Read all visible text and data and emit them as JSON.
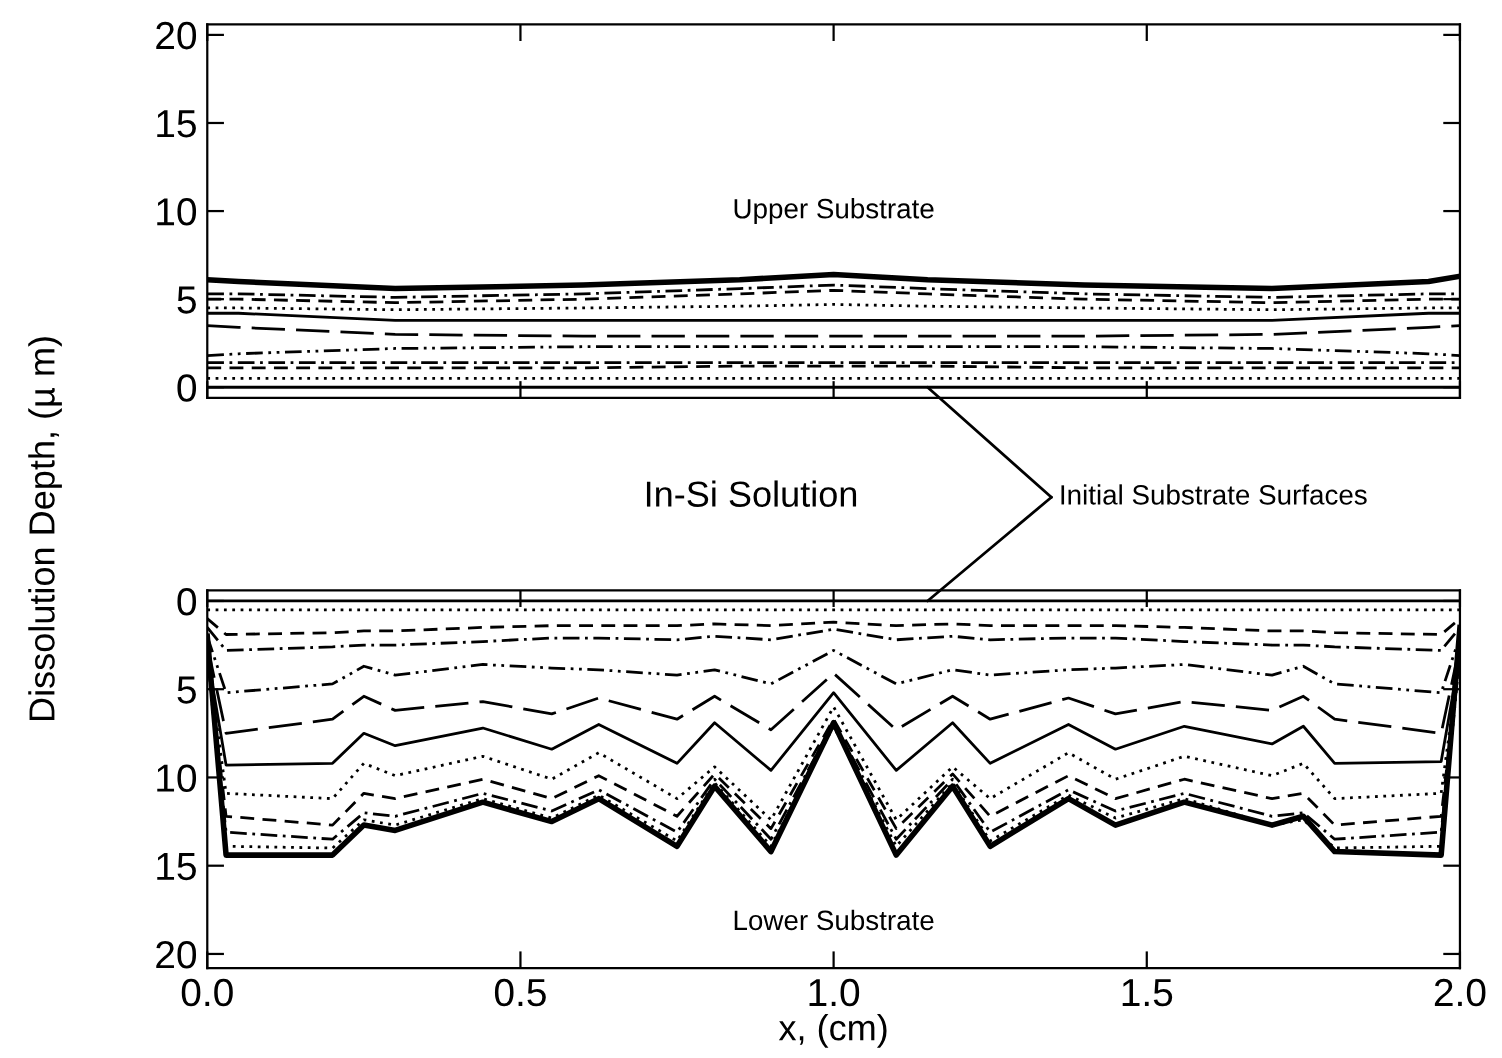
{
  "chart_data": [
    {
      "type": "line",
      "ylabel": "Dissolution Depth, (µ m)",
      "xlim": [
        0,
        2
      ],
      "ylim": [
        -0.6,
        20.6
      ],
      "xticks": [
        {
          "value": 0,
          "label": null
        },
        {
          "value": 0.5,
          "label": null
        },
        {
          "value": 1,
          "label": null
        },
        {
          "value": 1.5,
          "label": null
        },
        {
          "value": 2,
          "label": null
        }
      ],
      "yticks": [
        0,
        5,
        10,
        15,
        20
      ],
      "tick_labels": "y",
      "grid": false,
      "legend": false,
      "annotations": [
        "Upper Substrate",
        "In-Si Solution",
        {
          "text": "Initial Substrate Surfaces",
          "x": 1.15,
          "y": 0
        }
      ],
      "x": [
        0,
        0.05,
        0.3,
        0.6,
        0.85,
        1.0,
        1.15,
        1.4,
        1.7,
        1.95,
        2.0
      ],
      "series": [
        {
          "color": "#000000",
          "line_style": "solid",
          "values": [
            0,
            0,
            0,
            0,
            0,
            0,
            0,
            0,
            0,
            0,
            0
          ]
        },
        {
          "color": "#000000",
          "line_style": "dotted",
          "values": [
            0.5,
            0.5,
            0.5,
            0.5,
            0.5,
            0.5,
            0.5,
            0.5,
            0.5,
            0.5,
            0.5
          ]
        },
        {
          "color": "#000000",
          "line_style": "dashed",
          "values": [
            1.1,
            1.1,
            1.1,
            1.1,
            1.2,
            1.2,
            1.2,
            1.1,
            1.1,
            1.1,
            1.1
          ]
        },
        {
          "color": "#000000",
          "line_style": "dashdot",
          "values": [
            1.4,
            1.4,
            1.4,
            1.4,
            1.4,
            1.4,
            1.4,
            1.4,
            1.4,
            1.4,
            1.4
          ]
        },
        {
          "color": "#000000",
          "line_style": "dashdotdot",
          "values": [
            1.8,
            1.9,
            2.2,
            2.3,
            2.3,
            2.3,
            2.3,
            2.3,
            2.2,
            1.9,
            1.8
          ]
        },
        {
          "color": "#000000",
          "line_style": "longdash",
          "values": [
            3.5,
            3.4,
            3.0,
            2.9,
            2.9,
            2.9,
            2.9,
            2.9,
            3.0,
            3.4,
            3.5
          ]
        },
        {
          "color": "#000000",
          "line_style": "solid",
          "values": [
            4.2,
            4.2,
            3.8,
            3.8,
            3.8,
            3.8,
            3.8,
            3.8,
            3.8,
            4.2,
            4.2
          ]
        },
        {
          "color": "#000000",
          "line_style": "dotted",
          "values": [
            4.5,
            4.5,
            4.4,
            4.5,
            4.6,
            4.7,
            4.6,
            4.5,
            4.4,
            4.5,
            4.5
          ]
        },
        {
          "color": "#000000",
          "line_style": "dashed",
          "values": [
            5.0,
            5.0,
            4.8,
            5.0,
            5.3,
            5.5,
            5.3,
            5.0,
            4.8,
            5.0,
            5.0
          ]
        },
        {
          "color": "#000000",
          "line_style": "dashdot",
          "values": [
            5.3,
            5.3,
            5.1,
            5.3,
            5.6,
            5.8,
            5.6,
            5.3,
            5.1,
            5.3,
            5.3
          ]
        },
        {
          "color": "#000000",
          "line_style": "solid",
          "values": [
            6.1,
            6.0,
            5.6,
            5.8,
            6.1,
            6.4,
            6.1,
            5.8,
            5.6,
            6.0,
            6.3
          ]
        }
      ]
    },
    {
      "type": "line",
      "xlabel": "x, (cm)",
      "xlim": [
        0,
        2
      ],
      "ylim": [
        20.8,
        -0.6
      ],
      "xticks": [
        {
          "value": 0,
          "label": "0.0"
        },
        {
          "value": 0.5,
          "label": "0.5"
        },
        {
          "value": 1,
          "label": "1.0"
        },
        {
          "value": 1.5,
          "label": "1.5"
        },
        {
          "value": 2,
          "label": "2.0"
        }
      ],
      "yticks": [
        0,
        5,
        10,
        15,
        20
      ],
      "grid": false,
      "legend": false,
      "annotations": [
        "Lower Substrate"
      ],
      "x": [
        0,
        0.03,
        0.2,
        0.25,
        0.3,
        0.44,
        0.55,
        0.625,
        0.75,
        0.81,
        0.9,
        1.0,
        1.1,
        1.19,
        1.25,
        1.375,
        1.45,
        1.56,
        1.7,
        1.75,
        1.8,
        1.97,
        2.0
      ],
      "series": [
        {
          "color": "#000000",
          "line_style": "solid",
          "values": [
            0,
            0,
            0,
            0,
            0,
            0,
            0,
            0,
            0,
            0,
            0,
            0,
            0,
            0,
            0,
            0,
            0,
            0,
            0,
            0,
            0,
            0,
            0
          ]
        },
        {
          "color": "#000000",
          "line_style": "dotted",
          "values": [
            0.5,
            0.5,
            0.5,
            0.5,
            0.5,
            0.5,
            0.5,
            0.5,
            0.5,
            0.5,
            0.5,
            0.5,
            0.5,
            0.5,
            0.5,
            0.5,
            0.5,
            0.5,
            0.5,
            0.5,
            0.5,
            0.5,
            0.5
          ]
        },
        {
          "color": "#000000",
          "line_style": "dashed",
          "values": [
            1.0,
            1.9,
            1.8,
            1.7,
            1.7,
            1.5,
            1.4,
            1.4,
            1.4,
            1.3,
            1.4,
            1.2,
            1.4,
            1.3,
            1.4,
            1.4,
            1.4,
            1.5,
            1.7,
            1.7,
            1.8,
            1.9,
            1.0
          ]
        },
        {
          "color": "#000000",
          "line_style": "dashdot",
          "values": [
            1.5,
            2.8,
            2.6,
            2.5,
            2.5,
            2.3,
            2.1,
            2.1,
            2.2,
            2.0,
            2.2,
            1.6,
            2.2,
            2.0,
            2.2,
            2.1,
            2.1,
            2.3,
            2.5,
            2.5,
            2.6,
            2.8,
            1.5
          ]
        },
        {
          "color": "#000000",
          "line_style": "dashdotdot",
          "values": [
            2.0,
            5.2,
            4.7,
            3.7,
            4.2,
            3.6,
            3.8,
            3.9,
            4.2,
            3.9,
            4.7,
            2.8,
            4.7,
            3.9,
            4.2,
            3.9,
            3.8,
            3.6,
            4.2,
            3.7,
            4.7,
            5.2,
            2.0
          ]
        },
        {
          "color": "#000000",
          "line_style": "longdash",
          "values": [
            2.5,
            7.5,
            6.7,
            5.4,
            6.2,
            5.7,
            6.4,
            5.5,
            6.7,
            5.4,
            7.3,
            4.1,
            7.3,
            5.4,
            6.7,
            5.5,
            6.4,
            5.7,
            6.2,
            5.4,
            6.7,
            7.5,
            2.5
          ]
        },
        {
          "color": "#000000",
          "line_style": "solid",
          "values": [
            3.0,
            9.3,
            9.2,
            7.5,
            8.2,
            7.2,
            8.4,
            7.0,
            9.2,
            6.9,
            9.6,
            5.2,
            9.6,
            6.9,
            9.2,
            7.0,
            8.4,
            7.1,
            8.1,
            7.1,
            9.2,
            9.1,
            3.0
          ]
        },
        {
          "color": "#000000",
          "line_style": "dotted",
          "values": [
            3.0,
            10.9,
            11.2,
            9.2,
            9.9,
            8.8,
            10.1,
            8.6,
            11.2,
            9.4,
            12.4,
            6.0,
            12.4,
            9.4,
            11.2,
            8.6,
            10.1,
            8.8,
            9.9,
            9.2,
            11.2,
            10.9,
            3.0
          ]
        },
        {
          "color": "#000000",
          "line_style": "dashed",
          "values": [
            3.0,
            12.2,
            12.7,
            10.9,
            11.2,
            10.1,
            11.2,
            9.9,
            12.2,
            9.8,
            12.9,
            6.7,
            12.9,
            9.8,
            12.2,
            9.9,
            11.2,
            10.1,
            11.2,
            10.9,
            12.7,
            12.2,
            3.0
          ]
        },
        {
          "color": "#000000",
          "line_style": "dashdot",
          "values": [
            3.0,
            13.1,
            13.5,
            12.0,
            12.2,
            10.9,
            11.9,
            10.7,
            13.1,
            10.1,
            13.5,
            6.9,
            13.5,
            10.1,
            13.1,
            10.7,
            11.9,
            10.9,
            12.2,
            12.0,
            13.5,
            13.1,
            3.0
          ]
        },
        {
          "color": "#000000",
          "line_style": "dotted",
          "values": [
            3.0,
            13.9,
            14.0,
            12.4,
            12.7,
            11.2,
            12.3,
            11.0,
            13.6,
            10.3,
            13.9,
            7.1,
            13.9,
            10.3,
            13.6,
            11.0,
            12.3,
            11.2,
            12.7,
            12.4,
            14.0,
            13.9,
            3.0
          ]
        },
        {
          "color": "#000000",
          "line_style": "solid",
          "values": [
            2.0,
            14.4,
            14.4,
            12.7,
            13.0,
            11.4,
            12.5,
            11.2,
            13.9,
            10.5,
            14.2,
            6.9,
            14.4,
            10.5,
            13.9,
            11.2,
            12.7,
            11.4,
            12.7,
            12.2,
            14.2,
            14.4,
            1.5
          ]
        }
      ]
    }
  ]
}
